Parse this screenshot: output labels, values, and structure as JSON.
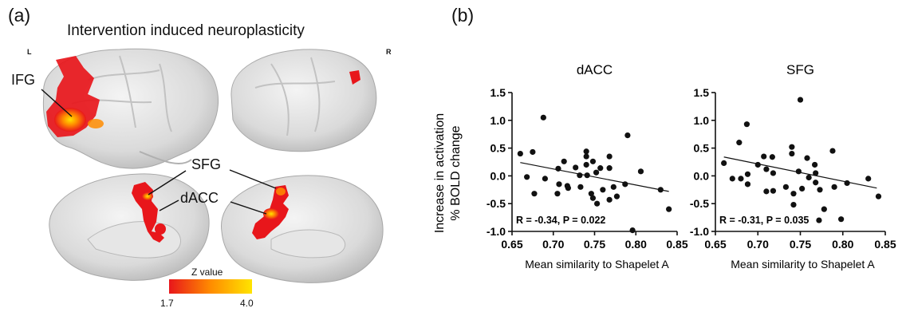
{
  "panel_a": {
    "letter": "(a)",
    "title": "Intervention induced neuroplasticity",
    "left_hemi": "L",
    "right_hemi": "R",
    "regions": [
      "IFG",
      "SFG",
      "dACC"
    ],
    "colorbar": {
      "label": "Z value",
      "min": "1.7",
      "max": "4.0",
      "colors": [
        "#e8161b",
        "#ff8c00",
        "#ffe400"
      ]
    }
  },
  "panel_b": {
    "letter": "(b)",
    "ylabel_line1": "Increase in activation",
    "ylabel_line2": "% BOLD change"
  },
  "chart_data": [
    {
      "type": "scatter",
      "title": "dACC",
      "xlabel": "Mean similarity to Shapelet A",
      "ylabel": "Increase in activation % BOLD change",
      "xlim": [
        0.65,
        0.85
      ],
      "ylim": [
        -1.0,
        1.5
      ],
      "xticks": [
        "0.65",
        "0.70",
        "0.75",
        "0.80",
        "0.85"
      ],
      "yticks": [
        "-1.0",
        "-0.5",
        "0.0",
        "0.5",
        "1.0",
        "1.5"
      ],
      "annotation": "R = -0.34, P = 0.022",
      "fit": {
        "x": [
          0.66,
          0.84
        ],
        "y": [
          0.24,
          -0.28
        ]
      },
      "points": [
        [
          0.66,
          0.4
        ],
        [
          0.668,
          -0.02
        ],
        [
          0.675,
          0.43
        ],
        [
          0.677,
          -0.32
        ],
        [
          0.688,
          1.05
        ],
        [
          0.69,
          -0.05
        ],
        [
          0.705,
          -0.32
        ],
        [
          0.706,
          0.13
        ],
        [
          0.707,
          -0.15
        ],
        [
          0.713,
          0.26
        ],
        [
          0.717,
          -0.18
        ],
        [
          0.718,
          -0.22
        ],
        [
          0.727,
          0.15
        ],
        [
          0.732,
          0.01
        ],
        [
          0.733,
          -0.2
        ],
        [
          0.74,
          0.44
        ],
        [
          0.74,
          0.35
        ],
        [
          0.74,
          0.2
        ],
        [
          0.741,
          0.01
        ],
        [
          0.746,
          -0.32
        ],
        [
          0.748,
          0.26
        ],
        [
          0.748,
          -0.4
        ],
        [
          0.752,
          0.06
        ],
        [
          0.753,
          -0.5
        ],
        [
          0.757,
          0.14
        ],
        [
          0.76,
          -0.25
        ],
        [
          0.768,
          0.35
        ],
        [
          0.768,
          0.14
        ],
        [
          0.768,
          -0.43
        ],
        [
          0.773,
          -0.2
        ],
        [
          0.777,
          -0.37
        ],
        [
          0.787,
          -0.15
        ],
        [
          0.79,
          0.73
        ],
        [
          0.796,
          -0.98
        ],
        [
          0.806,
          0.08
        ],
        [
          0.83,
          -0.25
        ],
        [
          0.84,
          -0.6
        ]
      ],
      "grid": false
    },
    {
      "type": "scatter",
      "title": "SFG",
      "xlabel": "Mean similarity to Shapelet A",
      "xlim": [
        0.65,
        0.85
      ],
      "ylim": [
        -1.0,
        1.5
      ],
      "xticks": [
        "0.65",
        "0.70",
        "0.75",
        "0.80",
        "0.85"
      ],
      "yticks": [
        "-1.0",
        "-0.5",
        "0.0",
        "0.5",
        "1.0",
        "1.5"
      ],
      "annotation": "R = -0.31, P = 0.035",
      "fit": {
        "x": [
          0.66,
          0.84
        ],
        "y": [
          0.34,
          -0.22
        ]
      },
      "points": [
        [
          0.66,
          0.23
        ],
        [
          0.67,
          -0.05
        ],
        [
          0.678,
          0.6
        ],
        [
          0.68,
          -0.05
        ],
        [
          0.687,
          0.93
        ],
        [
          0.688,
          0.03
        ],
        [
          0.688,
          -0.15
        ],
        [
          0.7,
          0.2
        ],
        [
          0.707,
          0.35
        ],
        [
          0.71,
          0.12
        ],
        [
          0.71,
          -0.28
        ],
        [
          0.717,
          0.34
        ],
        [
          0.718,
          0.05
        ],
        [
          0.718,
          -0.27
        ],
        [
          0.733,
          -0.2
        ],
        [
          0.74,
          0.52
        ],
        [
          0.74,
          0.4
        ],
        [
          0.742,
          -0.32
        ],
        [
          0.742,
          -0.52
        ],
        [
          0.748,
          0.08
        ],
        [
          0.75,
          1.37
        ],
        [
          0.752,
          -0.23
        ],
        [
          0.758,
          0.32
        ],
        [
          0.76,
          -0.03
        ],
        [
          0.767,
          0.2
        ],
        [
          0.768,
          0.05
        ],
        [
          0.768,
          -0.12
        ],
        [
          0.773,
          -0.25
        ],
        [
          0.778,
          -0.6
        ],
        [
          0.788,
          0.45
        ],
        [
          0.79,
          -0.2
        ],
        [
          0.798,
          -0.78
        ],
        [
          0.805,
          -0.13
        ],
        [
          0.83,
          -0.05
        ],
        [
          0.842,
          -0.37
        ],
        [
          0.772,
          -0.8
        ]
      ],
      "grid": false
    }
  ]
}
